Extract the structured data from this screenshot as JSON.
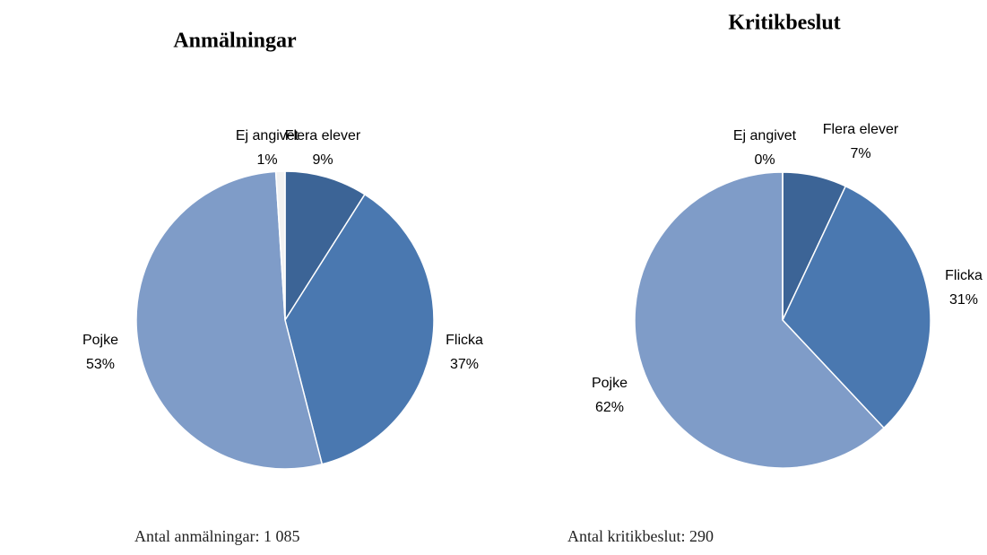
{
  "chart_data": [
    {
      "type": "pie",
      "title": "Anmälningar",
      "categories": [
        "Flera elever",
        "Flicka",
        "Pojke",
        "Ej angivet"
      ],
      "values": [
        9,
        37,
        53,
        1
      ],
      "value_labels": [
        "9%",
        "37%",
        "53%",
        "1%"
      ],
      "colors": [
        "#3c6496",
        "#4a78b0",
        "#7f9cc8",
        "#f2f2f2"
      ],
      "footnote": "Antal anmälningar: 1 085"
    },
    {
      "type": "pie",
      "title": "Kritikbeslut",
      "categories": [
        "Flera elever",
        "Flicka",
        "Pojke",
        "Ej angivet"
      ],
      "values": [
        7,
        31,
        62,
        0
      ],
      "value_labels": [
        "7%",
        "31%",
        "62%",
        "0%"
      ],
      "colors": [
        "#3c6496",
        "#4a78b0",
        "#7f9cc8",
        "#f2f2f2"
      ],
      "footnote": "Antal kritikbeslut: 290"
    }
  ]
}
